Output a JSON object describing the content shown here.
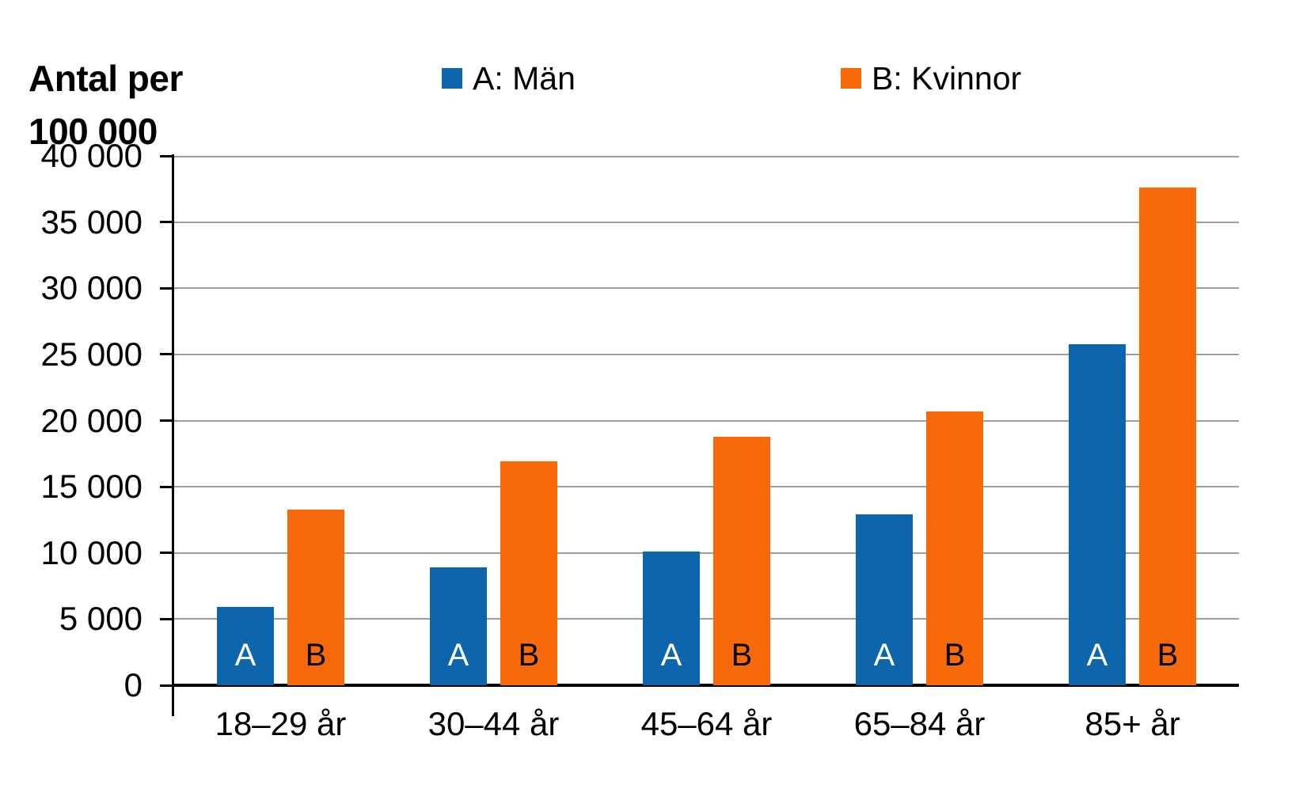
{
  "axis_title": {
    "line1": "Antal per",
    "line2": "100 000"
  },
  "legend": {
    "items": [
      {
        "label": "A: Män",
        "color": "#0d65ac"
      },
      {
        "label": "B: Kvinnor",
        "color": "#f8690a"
      }
    ]
  },
  "chart_data": {
    "type": "bar",
    "title": "Antal per 100 000",
    "ylabel": "Antal per 100 000",
    "xlabel": "",
    "categories": [
      "18–29 år",
      "30–44 år",
      "45–64 år",
      "65–84 år",
      "85+ år"
    ],
    "series": [
      {
        "name": "A: Män",
        "bar_letter": "A",
        "color": "#0d65ac",
        "letter_color": "#ffffff",
        "values": [
          5900,
          8900,
          10100,
          12900,
          25800
        ]
      },
      {
        "name": "B: Kvinnor",
        "bar_letter": "B",
        "color": "#f8690a",
        "letter_color": "#000000",
        "values": [
          13300,
          16900,
          18800,
          20700,
          37600
        ]
      }
    ],
    "ylim": [
      0,
      40000
    ],
    "ytick_interval": 5000,
    "ytick_labels": [
      "0",
      "5 000",
      "10 000",
      "15 000",
      "20 000",
      "25 000",
      "30 000",
      "35 000",
      "40 000"
    ],
    "grid": true,
    "legend_position": "top"
  }
}
